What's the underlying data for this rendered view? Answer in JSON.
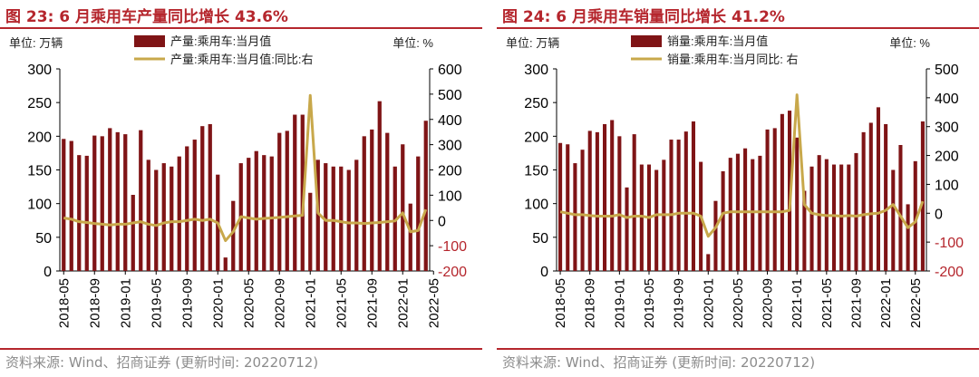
{
  "colors": {
    "bar": "#7f1416",
    "line": "#c8a84b",
    "title": "#b5262d",
    "right_axis_text": "#b5262d"
  },
  "chart_data": [
    {
      "type": "bar",
      "title": "图 23:  6 月乘用车产量同比增长 43.6%",
      "left_unit": "单位:  万辆",
      "right_unit": "单位:  %",
      "source": "资料来源:  Wind、招商证券 (更新时间:  20220712)",
      "legend": [
        "产量:乘用车:当月值",
        "产量:乘用车:当月值:同比:右"
      ],
      "series": [
        {
          "name": "产量:乘用车:当月值",
          "axis": "left",
          "kind": "bar",
          "values": [
            196,
            193,
            172,
            171,
            201,
            200,
            212,
            206,
            203,
            113,
            209,
            165,
            150,
            160,
            155,
            170,
            185,
            195,
            215,
            218,
            143,
            20,
            104,
            160,
            168,
            178,
            172,
            170,
            205,
            208,
            232,
            232,
            116,
            165,
            160,
            155,
            155,
            150,
            165,
            200,
            210,
            252,
            205,
            155,
            188,
            100,
            170,
            223
          ]
        },
        {
          "name": "产量:乘用车:当月值:同比:右",
          "axis": "right",
          "kind": "line",
          "values": [
            10,
            5,
            -5,
            -8,
            -12,
            -15,
            -18,
            -15,
            -15,
            -10,
            -5,
            -15,
            -20,
            -10,
            -5,
            -5,
            0,
            5,
            0,
            5,
            -10,
            -80,
            -45,
            15,
            10,
            5,
            8,
            10,
            12,
            15,
            18,
            20,
            495,
            30,
            0,
            0,
            -5,
            -10,
            -10,
            -12,
            -10,
            -8,
            -5,
            -2,
            30,
            -45,
            -40,
            43.6
          ]
        }
      ],
      "x_tick_labels": [
        "2018-05",
        "2018-09",
        "2019-01",
        "2019-05",
        "2019-09",
        "2020-01",
        "2020-05",
        "2020-09",
        "2021-01",
        "2021-05",
        "2021-09",
        "2022-01",
        "2022-05"
      ],
      "left_axis": {
        "ylim": [
          0,
          300
        ],
        "ticks": [
          "0",
          "50",
          "100",
          "150",
          "200",
          "250",
          "300"
        ]
      },
      "right_axis": {
        "ylim": [
          -200,
          600
        ],
        "ticks": [
          "-200",
          "-100",
          "0",
          "100",
          "200",
          "300",
          "400",
          "500",
          "600"
        ]
      }
    },
    {
      "type": "bar",
      "title": "图 24:  6 月乘用车销量同比增长 41.2%",
      "left_unit": "单位:  万辆",
      "right_unit": "单位:  %",
      "source": "资料来源:  Wind、招商证券 (更新时间:  20220712)",
      "legend": [
        "销量:乘用车:当月值",
        "销量:乘用车:当月同比:  右"
      ],
      "series": [
        {
          "name": "销量:乘用车:当月值",
          "axis": "left",
          "kind": "bar",
          "values": [
            190,
            188,
            160,
            180,
            208,
            206,
            218,
            224,
            200,
            124,
            203,
            158,
            158,
            150,
            165,
            195,
            195,
            207,
            222,
            162,
            25,
            104,
            148,
            168,
            174,
            182,
            166,
            171,
            210,
            212,
            233,
            238,
            198,
            119,
            155,
            172,
            166,
            158,
            158,
            158,
            175,
            206,
            220,
            243,
            218,
            150,
            187,
            99,
            163,
            222
          ]
        },
        {
          "name": "销量:乘用车:当月同比:  右",
          "axis": "right",
          "kind": "line",
          "values": [
            5,
            0,
            -5,
            -5,
            -8,
            -10,
            -10,
            -10,
            -5,
            -15,
            -10,
            -10,
            -15,
            -5,
            -5,
            -5,
            0,
            0,
            0,
            -10,
            -80,
            -50,
            0,
            5,
            5,
            5,
            5,
            5,
            5,
            5,
            5,
            10,
            410,
            30,
            0,
            -5,
            -8,
            -8,
            -10,
            -8,
            -10,
            -5,
            -2,
            0,
            10,
            30,
            -10,
            -50,
            -30,
            41.2
          ]
        }
      ],
      "x_tick_labels": [
        "2018-05",
        "2018-09",
        "2019-01",
        "2019-05",
        "2019-09",
        "2020-01",
        "2020-05",
        "2020-09",
        "2021-01",
        "2021-05",
        "2021-09",
        "2022-01",
        "2022-05"
      ],
      "left_axis": {
        "ylim": [
          0,
          300
        ],
        "ticks": [
          "0",
          "50",
          "100",
          "150",
          "200",
          "250",
          "300"
        ]
      },
      "right_axis": {
        "ylim": [
          -200,
          500
        ],
        "ticks": [
          "-200",
          "-100",
          "0",
          "100",
          "200",
          "300",
          "400",
          "500"
        ]
      }
    }
  ]
}
